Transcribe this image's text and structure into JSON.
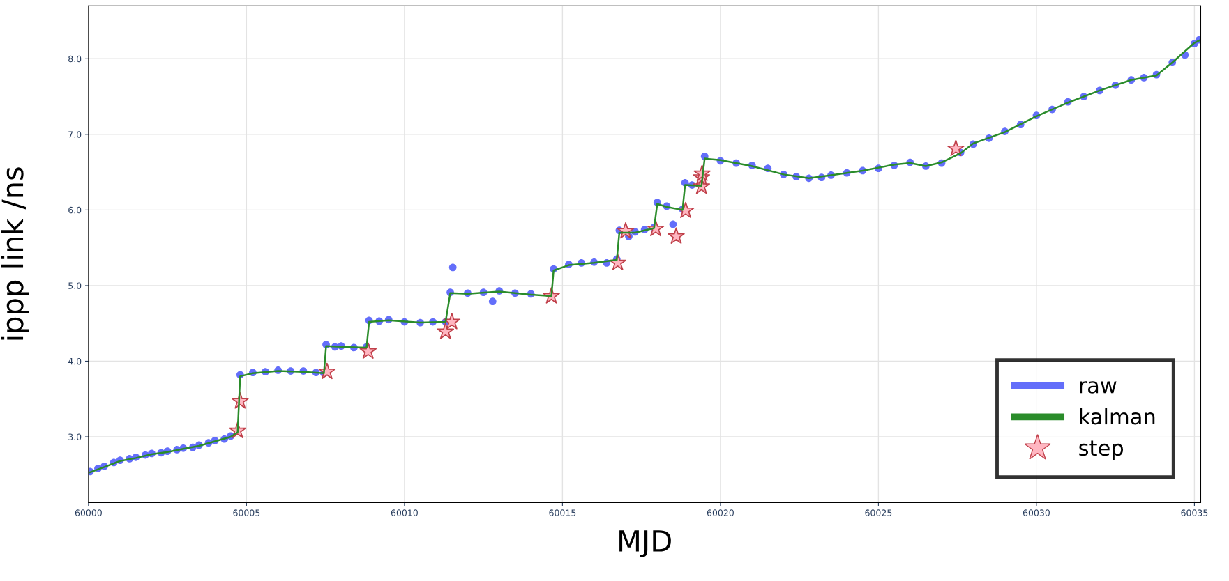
{
  "chart_data": {
    "type": "scatter",
    "xlabel": "MJD",
    "ylabel": "ippp link /ns",
    "xlim": [
      60000,
      60035.2
    ],
    "xticks": [
      60000,
      60005,
      60010,
      60015,
      60020,
      60025,
      60030,
      60035
    ],
    "ylim": [
      2.13,
      8.7
    ],
    "yticks": [
      {
        "value": 3,
        "label": "3.0"
      },
      {
        "value": 4,
        "label": "4.0"
      },
      {
        "value": 5,
        "label": "5.0"
      },
      {
        "value": 6,
        "label": "6.0"
      },
      {
        "value": 7,
        "label": "7.0"
      },
      {
        "value": 8,
        "label": "8.0"
      }
    ],
    "grid": true,
    "legend": "bottom right",
    "series": [
      {
        "name": "raw",
        "marker": "circle",
        "color": "#636efa",
        "x": [
          60000.05,
          60000.3,
          60000.5,
          60000.8,
          60001,
          60001.3,
          60001.5,
          60001.8,
          60002,
          60002.3,
          60002.5,
          60002.8,
          60003,
          60003.3,
          60003.5,
          60003.8,
          60004,
          60004.3,
          60004.5,
          60004.72,
          60004.76,
          60004.8,
          60005.2,
          60005.6,
          60006,
          60006.4,
          60006.8,
          60007.2,
          60007.45,
          60007.52,
          60007.8,
          60008,
          60008.4,
          60008.8,
          60008.88,
          60009.2,
          60009.5,
          60010,
          60010.5,
          60010.9,
          60011.3,
          60011.45,
          60011.53,
          60012,
          60012.5,
          60012.79,
          60013,
          60013.5,
          60014,
          60014.65,
          60014.72,
          60015.2,
          60015.6,
          60016,
          60016.4,
          60016.72,
          60016.8,
          60017.1,
          60017.3,
          60017.6,
          60017.9,
          60018.0,
          60018.3,
          60018.5,
          60018.8,
          60018.88,
          60019.1,
          60019.4,
          60019.5,
          60020,
          60020.5,
          60021,
          60021.5,
          60022,
          60022.4,
          60022.8,
          60023.2,
          60023.5,
          60024,
          60024.5,
          60025,
          60025.5,
          60026,
          60026.5,
          60027,
          60027.6,
          60028,
          60028.5,
          60029,
          60029.5,
          60030,
          60030.5,
          60031,
          60031.5,
          60032,
          60032.5,
          60033,
          60033.4,
          60033.8,
          60034.3,
          60034.7,
          60035,
          60035.15
        ],
        "values": [
          2.54,
          2.58,
          2.61,
          2.66,
          2.69,
          2.71,
          2.73,
          2.76,
          2.78,
          2.79,
          2.81,
          2.83,
          2.85,
          2.86,
          2.89,
          2.92,
          2.95,
          2.97,
          3.01,
          null,
          null,
          3.82,
          3.85,
          3.86,
          3.88,
          3.87,
          3.87,
          3.85,
          3.84,
          4.22,
          4.19,
          4.2,
          4.18,
          4.19,
          4.54,
          4.53,
          4.55,
          4.52,
          4.51,
          4.52,
          4.52,
          4.91,
          5.24,
          4.9,
          4.91,
          4.79,
          4.93,
          4.9,
          4.89,
          null,
          5.22,
          5.28,
          5.3,
          5.31,
          5.3,
          5.35,
          5.73,
          5.65,
          5.71,
          5.74,
          5.77,
          6.1,
          6.05,
          5.81,
          6.01,
          6.36,
          6.33,
          null,
          6.71,
          6.65,
          6.62,
          6.59,
          6.55,
          6.47,
          6.44,
          6.42,
          6.43,
          6.46,
          6.49,
          6.52,
          6.55,
          6.59,
          6.63,
          6.58,
          6.62,
          6.76,
          6.87,
          6.95,
          7.04,
          7.13,
          7.25,
          7.33,
          7.43,
          7.5,
          7.58,
          7.65,
          7.72,
          7.75,
          7.79,
          7.95,
          8.05,
          8.2,
          8.25
        ]
      },
      {
        "name": "kalman",
        "type": "line",
        "color": "#2a8c2a",
        "x": [
          60000.05,
          60000.5,
          60001,
          60001.5,
          60002,
          60002.5,
          60003,
          60003.5,
          60004,
          60004.5,
          60004.72,
          60004.8,
          60005.2,
          60006,
          60006.8,
          60007.45,
          60007.52,
          60008,
          60008.8,
          60008.88,
          60009.5,
          60010.5,
          60011.3,
          60011.45,
          60012,
          60013,
          60014,
          60014.65,
          60014.72,
          60015.2,
          60016,
          60016.72,
          60016.8,
          60017.3,
          60017.9,
          60018.0,
          60018.3,
          60018.8,
          60018.88,
          60019.4,
          60019.5,
          60020,
          60021,
          60022,
          60022.8,
          60023.5,
          60024.5,
          60025.5,
          60026,
          60026.5,
          60027,
          60027.6,
          60028,
          60029,
          60030,
          60031,
          60032,
          60033,
          60033.8,
          60034.3,
          60035,
          60035.15
        ],
        "values": [
          2.53,
          2.6,
          2.68,
          2.72,
          2.77,
          2.8,
          2.84,
          2.88,
          2.94,
          3.0,
          3.06,
          3.8,
          3.84,
          3.87,
          3.86,
          3.84,
          4.2,
          4.19,
          4.18,
          4.52,
          4.54,
          4.51,
          4.52,
          4.9,
          4.89,
          4.92,
          4.88,
          4.86,
          5.2,
          5.27,
          5.3,
          5.34,
          5.7,
          5.7,
          5.76,
          6.08,
          6.04,
          6.0,
          6.33,
          6.32,
          6.68,
          6.66,
          6.58,
          6.47,
          6.42,
          6.46,
          6.52,
          6.6,
          6.62,
          6.58,
          6.63,
          6.75,
          6.88,
          7.03,
          7.24,
          7.42,
          7.58,
          7.72,
          7.78,
          7.95,
          8.21,
          8.24
        ]
      },
      {
        "name": "step",
        "marker": "star",
        "color": "#ffb6c1",
        "x": [
          60004.72,
          60004.8,
          60007.55,
          60008.85,
          60011.3,
          60011.5,
          60014.65,
          60016.75,
          60017.0,
          60017.95,
          60018.6,
          60018.9,
          60019.4,
          60019.4,
          60019.42,
          60027.45
        ],
        "values": [
          3.08,
          3.47,
          3.86,
          4.13,
          4.39,
          4.52,
          4.86,
          5.3,
          5.72,
          5.75,
          5.65,
          5.99,
          6.31,
          6.43,
          6.48,
          6.81
        ]
      }
    ]
  }
}
